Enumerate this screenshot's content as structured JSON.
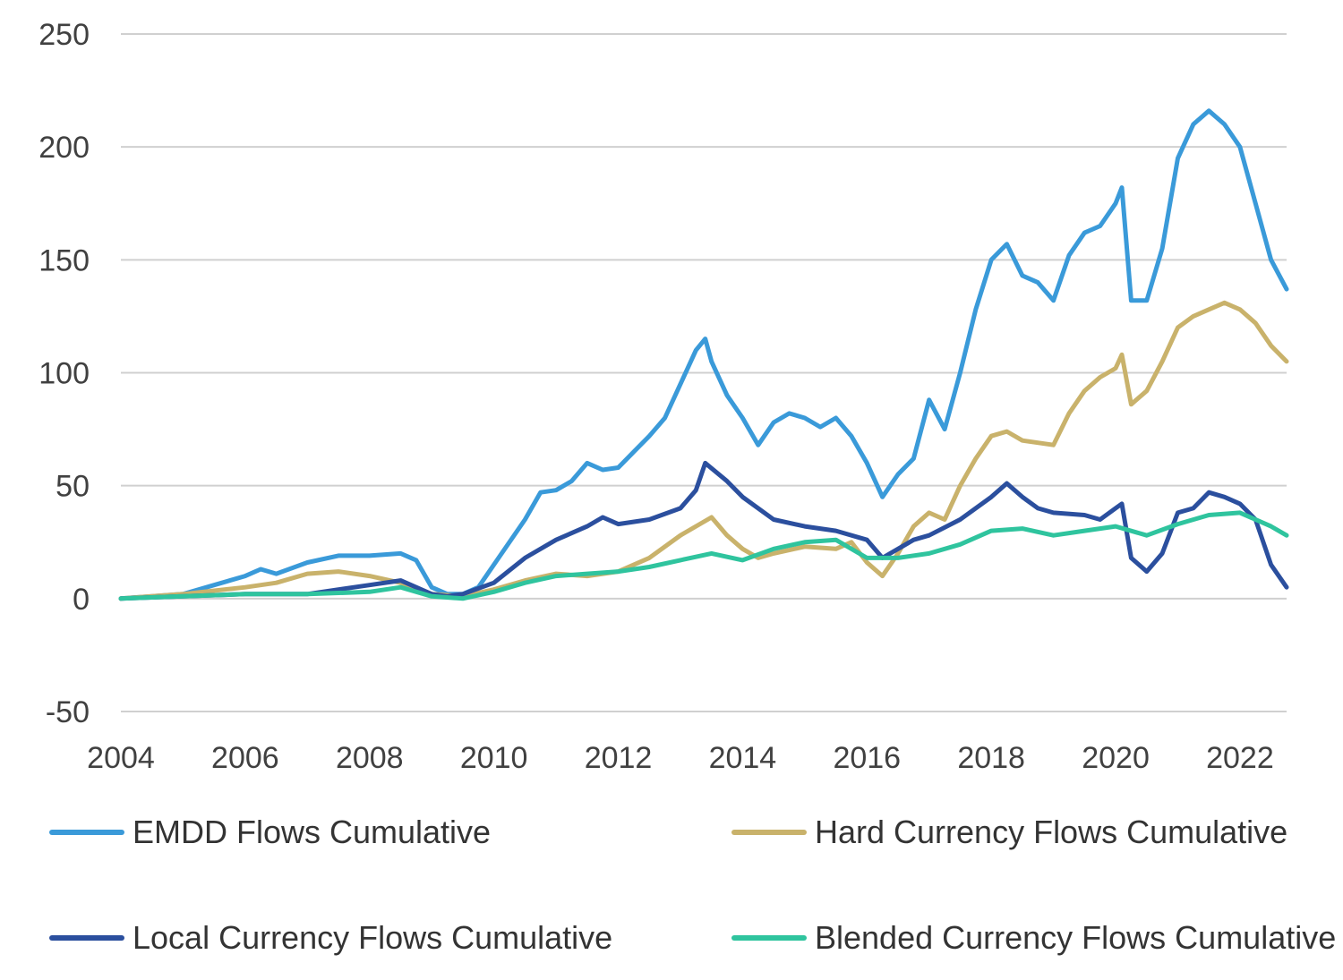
{
  "chart_data": {
    "type": "line",
    "title": "",
    "xlabel": "",
    "ylabel": "",
    "xlim": [
      2004,
      2022.75
    ],
    "ylim": [
      -50,
      250
    ],
    "x_ticks": [
      2004,
      2006,
      2008,
      2010,
      2012,
      2014,
      2016,
      2018,
      2020,
      2022
    ],
    "x_tick_labels": [
      "2004",
      "2006",
      "2008",
      "2010",
      "2012",
      "2014",
      "2016",
      "2018",
      "2020",
      "2022"
    ],
    "y_ticks": [
      250,
      200,
      150,
      100,
      50,
      0,
      -50
    ],
    "y_tick_labels": [
      "250",
      "200",
      "150",
      "100",
      "50",
      "0",
      "-50"
    ],
    "grid": "horizontal",
    "legend_position": "bottom",
    "series": [
      {
        "name": "EMDD Flows Cumulative",
        "color": "#3a9ad9",
        "x": [
          2004,
          2004.5,
          2005,
          2005.5,
          2006,
          2006.25,
          2006.5,
          2007,
          2007.5,
          2008,
          2008.5,
          2008.75,
          2009,
          2009.25,
          2009.5,
          2009.75,
          2010,
          2010.5,
          2010.75,
          2011,
          2011.25,
          2011.5,
          2011.75,
          2012,
          2012.25,
          2012.5,
          2012.75,
          2013,
          2013.25,
          2013.4,
          2013.5,
          2013.75,
          2014,
          2014.25,
          2014.5,
          2014.75,
          2015,
          2015.25,
          2015.5,
          2015.75,
          2016,
          2016.25,
          2016.5,
          2016.75,
          2017,
          2017.25,
          2017.5,
          2017.75,
          2018,
          2018.25,
          2018.5,
          2018.75,
          2019,
          2019.25,
          2019.5,
          2019.75,
          2020,
          2020.1,
          2020.25,
          2020.5,
          2020.75,
          2021,
          2021.25,
          2021.5,
          2021.75,
          2022,
          2022.25,
          2022.5,
          2022.75
        ],
        "values": [
          0,
          1,
          2,
          6,
          10,
          13,
          11,
          16,
          19,
          19,
          20,
          17,
          5,
          2,
          2,
          5,
          15,
          35,
          47,
          48,
          52,
          60,
          57,
          58,
          65,
          72,
          80,
          95,
          110,
          115,
          105,
          90,
          80,
          68,
          78,
          82,
          80,
          76,
          80,
          72,
          60,
          45,
          55,
          62,
          88,
          75,
          100,
          128,
          150,
          157,
          143,
          140,
          132,
          152,
          162,
          165,
          175,
          182,
          132,
          132,
          155,
          195,
          210,
          216,
          210,
          200,
          175,
          150,
          137
        ]
      },
      {
        "name": "Hard Currency Flows Cumulative",
        "color": "#c9b26b",
        "x": [
          2004,
          2005,
          2006,
          2006.5,
          2007,
          2007.5,
          2008,
          2008.5,
          2009,
          2009.5,
          2010,
          2010.5,
          2011,
          2011.5,
          2012,
          2012.5,
          2013,
          2013.5,
          2013.75,
          2014,
          2014.25,
          2014.5,
          2015,
          2015.5,
          2015.75,
          2016,
          2016.25,
          2016.5,
          2016.75,
          2017,
          2017.25,
          2017.5,
          2017.75,
          2018,
          2018.25,
          2018.5,
          2018.75,
          2019,
          2019.25,
          2019.5,
          2019.75,
          2020,
          2020.1,
          2020.25,
          2020.5,
          2020.75,
          2021,
          2021.25,
          2021.5,
          2021.75,
          2022,
          2022.25,
          2022.5,
          2022.75
        ],
        "values": [
          0,
          2,
          5,
          7,
          11,
          12,
          10,
          7,
          2,
          1,
          4,
          8,
          11,
          10,
          12,
          18,
          28,
          36,
          28,
          22,
          18,
          20,
          23,
          22,
          25,
          16,
          10,
          20,
          32,
          38,
          35,
          50,
          62,
          72,
          74,
          70,
          69,
          68,
          82,
          92,
          98,
          102,
          108,
          86,
          92,
          105,
          120,
          125,
          128,
          131,
          128,
          122,
          112,
          105
        ]
      },
      {
        "name": "Local Currency Flows Cumulative",
        "color": "#2b4f9e",
        "x": [
          2004,
          2005,
          2006,
          2007,
          2007.5,
          2008,
          2008.5,
          2009,
          2009.25,
          2009.5,
          2010,
          2010.5,
          2011,
          2011.5,
          2011.75,
          2012,
          2012.5,
          2013,
          2013.25,
          2013.4,
          2013.75,
          2014,
          2014.5,
          2015,
          2015.5,
          2016,
          2016.25,
          2016.5,
          2016.75,
          2017,
          2017.5,
          2018,
          2018.25,
          2018.5,
          2018.75,
          2019,
          2019.5,
          2019.75,
          2020,
          2020.1,
          2020.25,
          2020.5,
          2020.75,
          2021,
          2021.25,
          2021.5,
          2021.75,
          2022,
          2022.25,
          2022.5,
          2022.75
        ],
        "values": [
          0,
          1,
          2,
          2,
          4,
          6,
          8,
          2,
          1,
          2,
          7,
          18,
          26,
          32,
          36,
          33,
          35,
          40,
          48,
          60,
          52,
          45,
          35,
          32,
          30,
          26,
          18,
          22,
          26,
          28,
          35,
          45,
          51,
          45,
          40,
          38,
          37,
          35,
          40,
          42,
          18,
          12,
          20,
          38,
          40,
          47,
          45,
          42,
          35,
          15,
          5
        ]
      },
      {
        "name": "Blended Currency Flows Cumulative",
        "color": "#2fc49e",
        "x": [
          2004,
          2005,
          2006,
          2007,
          2008,
          2008.5,
          2009,
          2009.5,
          2010,
          2010.5,
          2011,
          2011.5,
          2012,
          2012.5,
          2013,
          2013.5,
          2014,
          2014.5,
          2015,
          2015.5,
          2016,
          2016.5,
          2017,
          2017.5,
          2018,
          2018.5,
          2019,
          2019.5,
          2020,
          2020.5,
          2021,
          2021.5,
          2022,
          2022.5,
          2022.75
        ],
        "values": [
          0,
          1,
          2,
          2,
          3,
          5,
          1,
          0,
          3,
          7,
          10,
          11,
          12,
          14,
          17,
          20,
          17,
          22,
          25,
          26,
          18,
          18,
          20,
          24,
          30,
          31,
          28,
          30,
          32,
          28,
          33,
          37,
          38,
          32,
          28
        ]
      }
    ]
  }
}
